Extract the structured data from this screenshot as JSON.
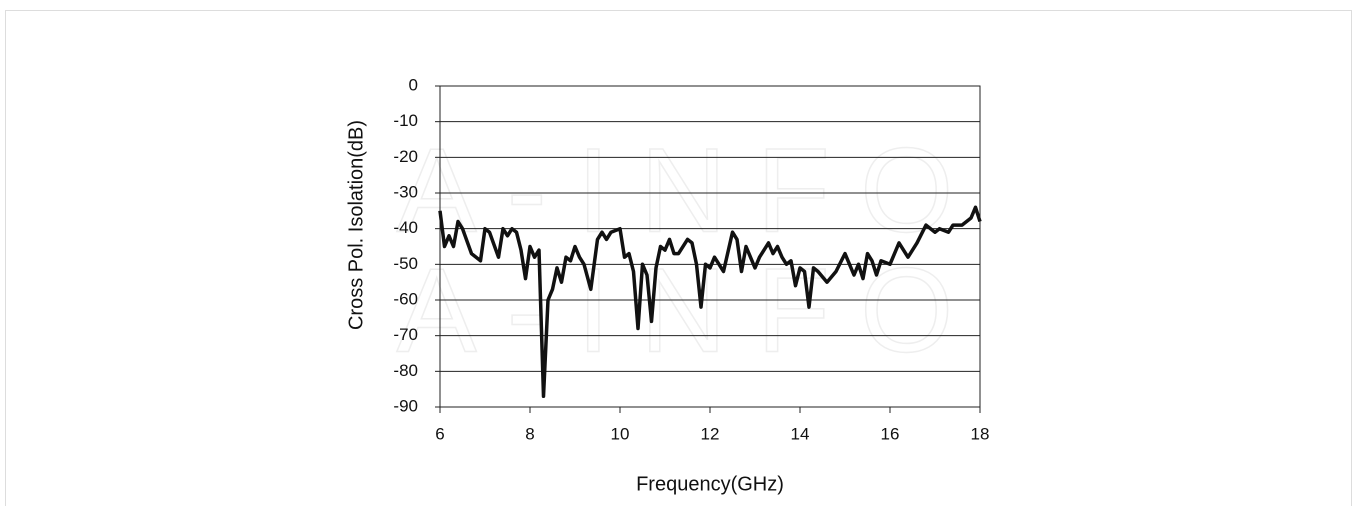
{
  "chart_data": {
    "type": "line",
    "x_label": "Frequency(GHz)",
    "y_label": "Cross Pol. Isolation(dB)",
    "watermark": "A-INFO",
    "xlim": [
      6,
      18
    ],
    "xticks": [
      6,
      8,
      10,
      12,
      14,
      16,
      18
    ],
    "ylim": [
      -90,
      0
    ],
    "yticks": [
      0,
      -10,
      -20,
      -30,
      -40,
      -50,
      -60,
      -70,
      -80,
      -90
    ],
    "grid": true,
    "series": [
      {
        "color": "#111111",
        "x": [
          6.0,
          6.1,
          6.2,
          6.3,
          6.4,
          6.5,
          6.7,
          6.9,
          7.0,
          7.1,
          7.3,
          7.4,
          7.5,
          7.6,
          7.7,
          7.8,
          7.9,
          8.0,
          8.1,
          8.2,
          8.3,
          8.4,
          8.5,
          8.6,
          8.7,
          8.8,
          8.9,
          9.0,
          9.1,
          9.2,
          9.35,
          9.5,
          9.6,
          9.7,
          9.8,
          10.0,
          10.1,
          10.2,
          10.3,
          10.4,
          10.5,
          10.6,
          10.7,
          10.8,
          10.9,
          11.0,
          11.1,
          11.2,
          11.3,
          11.5,
          11.6,
          11.7,
          11.8,
          11.9,
          12.0,
          12.1,
          12.2,
          12.3,
          12.5,
          12.6,
          12.7,
          12.8,
          13.0,
          13.1,
          13.3,
          13.4,
          13.5,
          13.6,
          13.7,
          13.8,
          13.9,
          14.0,
          14.1,
          14.2,
          14.3,
          14.4,
          14.6,
          14.8,
          15.0,
          15.1,
          15.2,
          15.3,
          15.4,
          15.5,
          15.6,
          15.7,
          15.8,
          16.0,
          16.2,
          16.3,
          16.4,
          16.5,
          16.6,
          16.8,
          17.0,
          17.1,
          17.3,
          17.4,
          17.6,
          17.8,
          17.9,
          18.0
        ],
        "values": [
          -35,
          -45,
          -42,
          -45,
          -38,
          -40,
          -47,
          -49,
          -40,
          -41,
          -48,
          -40,
          -42,
          -40,
          -41,
          -46,
          -54,
          -45,
          -48,
          -46,
          -87,
          -60,
          -57,
          -51,
          -55,
          -48,
          -49,
          -45,
          -48,
          -50,
          -57,
          -43,
          -41,
          -43,
          -41,
          -40,
          -48,
          -47,
          -52,
          -68,
          -50,
          -53,
          -66,
          -51,
          -45,
          -46,
          -43,
          -47,
          -47,
          -43,
          -44,
          -50,
          -62,
          -50,
          -51,
          -48,
          -50,
          -52,
          -41,
          -43,
          -52,
          -45,
          -51,
          -48,
          -44,
          -47,
          -45,
          -48,
          -50,
          -49,
          -56,
          -51,
          -52,
          -62,
          -51,
          -52,
          -55,
          -52,
          -47,
          -50,
          -53,
          -50,
          -54,
          -47,
          -49,
          -53,
          -49,
          -50,
          -44,
          -46,
          -48,
          -46,
          -44,
          -39,
          -41,
          -40,
          -41,
          -39,
          -39,
          -37,
          -34,
          -38
        ]
      }
    ]
  }
}
